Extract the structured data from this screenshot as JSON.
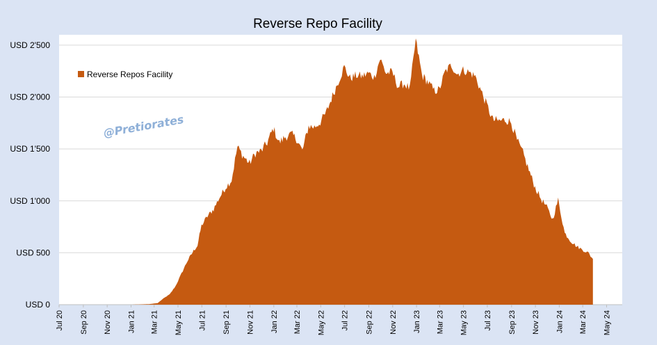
{
  "chart_data": {
    "type": "area",
    "title": "Reverse Repo Facility",
    "xlabel": "",
    "ylabel": "",
    "ylim": [
      0,
      2600
    ],
    "yticks": [
      0,
      500,
      1000,
      1500,
      2000,
      2500
    ],
    "ytick_labels": [
      "USD 0",
      "USD 500",
      "USD 1'000",
      "USD 1'500",
      "USD 2'000",
      "USD 2'500"
    ],
    "xlim": [
      "2020-07-01",
      "2024-06-10"
    ],
    "xticks": [
      "2020-07-01",
      "2020-09-01",
      "2020-11-01",
      "2021-01-01",
      "2021-03-01",
      "2021-05-01",
      "2021-07-01",
      "2021-09-01",
      "2021-11-01",
      "2022-01-01",
      "2022-03-01",
      "2022-05-01",
      "2022-07-01",
      "2022-09-01",
      "2022-11-01",
      "2023-01-01",
      "2023-03-01",
      "2023-05-01",
      "2023-07-01",
      "2023-09-01",
      "2023-11-01",
      "2024-01-01",
      "2024-03-01",
      "2024-05-01"
    ],
    "xtick_labels": [
      "Jul 20",
      "Sep 20",
      "Nov 20",
      "Jan 21",
      "Mar 21",
      "May 21",
      "Jul 21",
      "Sep 21",
      "Nov 21",
      "Jan 22",
      "Mar 22",
      "May 22",
      "Jul 22",
      "Sep 22",
      "Nov 22",
      "Jan 23",
      "Mar 23",
      "May 23",
      "Jul 23",
      "Sep 23",
      "Nov 23",
      "Jan 24",
      "Mar 24",
      "May 24"
    ],
    "grid": "horizontal",
    "legend_position": "top-left",
    "colors": {
      "series": "#c55a11",
      "background": "#dbe4f4",
      "plot": "#ffffff",
      "grid": "#d9d9d9",
      "watermark": "#8fb0d8"
    },
    "series": [
      {
        "name": "Reverse Repos Facility",
        "points": [
          [
            "2020-07-01",
            0
          ],
          [
            "2021-01-01",
            0
          ],
          [
            "2021-02-15",
            5
          ],
          [
            "2021-03-10",
            15
          ],
          [
            "2021-03-25",
            60
          ],
          [
            "2021-04-10",
            100
          ],
          [
            "2021-04-25",
            180
          ],
          [
            "2021-05-10",
            300
          ],
          [
            "2021-05-25",
            420
          ],
          [
            "2021-06-10",
            520
          ],
          [
            "2021-06-20",
            570
          ],
          [
            "2021-06-30",
            760
          ],
          [
            "2021-07-15",
            850
          ],
          [
            "2021-07-31",
            920
          ],
          [
            "2021-08-15",
            1030
          ],
          [
            "2021-08-31",
            1130
          ],
          [
            "2021-09-15",
            1200
          ],
          [
            "2021-09-30",
            1520
          ],
          [
            "2021-10-15",
            1430
          ],
          [
            "2021-10-31",
            1360
          ],
          [
            "2021-11-15",
            1460
          ],
          [
            "2021-11-30",
            1480
          ],
          [
            "2021-12-15",
            1560
          ],
          [
            "2021-12-31",
            1700
          ],
          [
            "2022-01-15",
            1560
          ],
          [
            "2022-01-31",
            1620
          ],
          [
            "2022-02-15",
            1640
          ],
          [
            "2022-02-28",
            1600
          ],
          [
            "2022-03-15",
            1480
          ],
          [
            "2022-03-31",
            1720
          ],
          [
            "2022-04-15",
            1710
          ],
          [
            "2022-04-30",
            1760
          ],
          [
            "2022-05-15",
            1850
          ],
          [
            "2022-05-31",
            2010
          ],
          [
            "2022-06-15",
            2150
          ],
          [
            "2022-06-30",
            2290
          ],
          [
            "2022-07-15",
            2180
          ],
          [
            "2022-07-31",
            2210
          ],
          [
            "2022-08-15",
            2200
          ],
          [
            "2022-08-31",
            2230
          ],
          [
            "2022-09-15",
            2190
          ],
          [
            "2022-09-30",
            2370
          ],
          [
            "2022-10-15",
            2230
          ],
          [
            "2022-10-31",
            2240
          ],
          [
            "2022-11-15",
            2100
          ],
          [
            "2022-11-30",
            2130
          ],
          [
            "2022-12-15",
            2080
          ],
          [
            "2022-12-30",
            2550
          ],
          [
            "2023-01-15",
            2210
          ],
          [
            "2023-01-31",
            2140
          ],
          [
            "2023-02-15",
            2060
          ],
          [
            "2023-02-28",
            2070
          ],
          [
            "2023-03-15",
            2240
          ],
          [
            "2023-03-31",
            2310
          ],
          [
            "2023-04-15",
            2220
          ],
          [
            "2023-04-30",
            2260
          ],
          [
            "2023-05-15",
            2240
          ],
          [
            "2023-05-31",
            2200
          ],
          [
            "2023-06-15",
            2060
          ],
          [
            "2023-06-30",
            1920
          ],
          [
            "2023-07-15",
            1780
          ],
          [
            "2023-07-31",
            1770
          ],
          [
            "2023-08-15",
            1780
          ],
          [
            "2023-08-31",
            1760
          ],
          [
            "2023-09-15",
            1580
          ],
          [
            "2023-09-30",
            1460
          ],
          [
            "2023-10-15",
            1300
          ],
          [
            "2023-10-31",
            1130
          ],
          [
            "2023-11-15",
            1020
          ],
          [
            "2023-11-30",
            940
          ],
          [
            "2023-12-15",
            820
          ],
          [
            "2023-12-29",
            1010
          ],
          [
            "2024-01-15",
            690
          ],
          [
            "2024-01-31",
            610
          ],
          [
            "2024-02-15",
            560
          ],
          [
            "2024-02-29",
            530
          ],
          [
            "2024-03-15",
            500
          ],
          [
            "2024-03-27",
            440
          ]
        ]
      }
    ],
    "annotations": [
      "@Pretiorates"
    ]
  }
}
